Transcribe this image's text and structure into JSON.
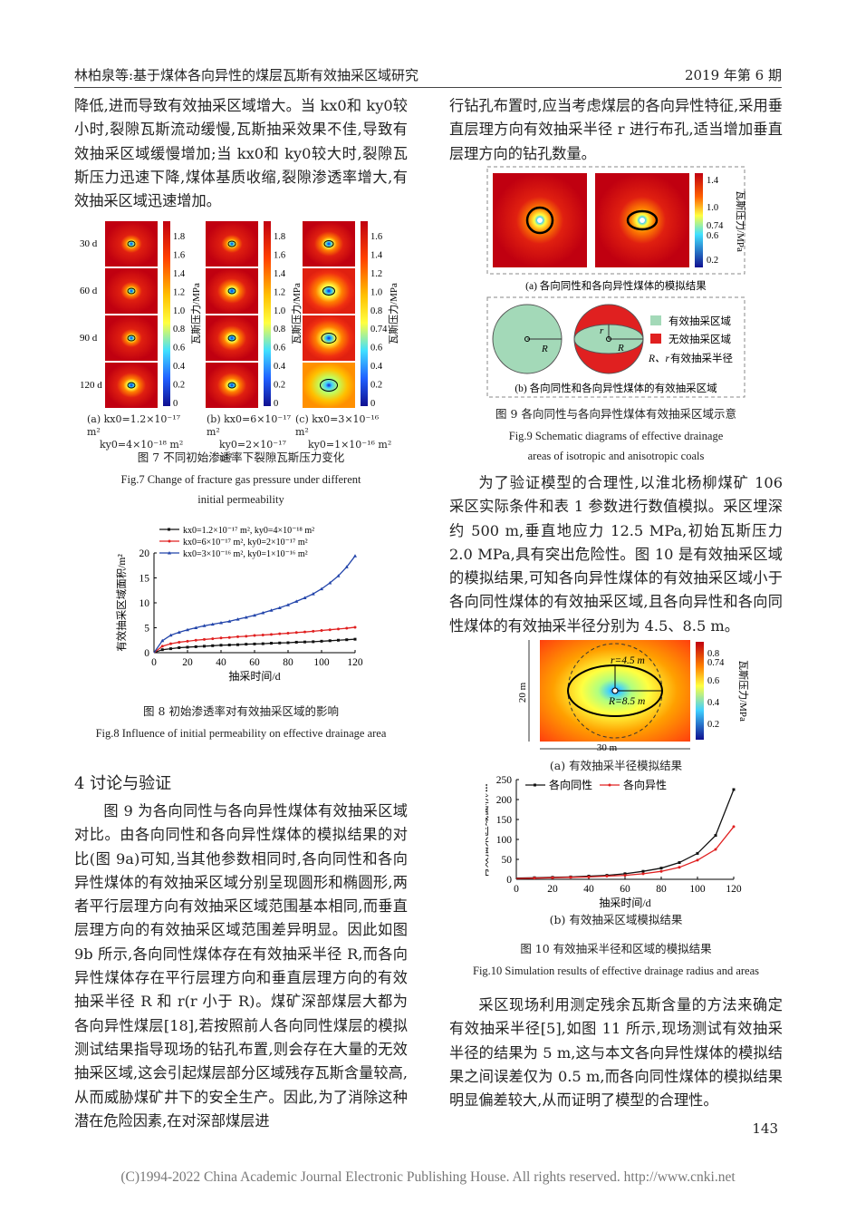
{
  "header": {
    "left": "林柏泉等:基于煤体各向异性的煤层瓦斯有效抽采区域研究",
    "right": "2019 年第 6 期"
  },
  "left_column": {
    "para1": "降低,进而导致有效抽采区域增大。当 kx0和 ky0较小时,裂隙瓦斯流动缓慢,瓦斯抽采效果不佳,导致有效抽采区域缓慢增加;当 kx0和 ky0较大时,裂隙瓦斯压力迅速下降,煤体基质收缩,裂隙渗透率增大,有效抽采区域迅速增加。",
    "section_title": "4  讨论与验证",
    "para2": "图 9 为各向同性与各向异性煤体有效抽采区域对比。由各向同性和各向异性煤体的模拟结果的对比(图 9a)可知,当其他参数相同时,各向同性和各向异性煤体的有效抽采区域分别呈现圆形和椭圆形,两者平行层理方向有效抽采区域范围基本相同,而垂直层理方向的有效抽采区域范围差异明显。因此如图 9b 所示,各向同性煤体存在有效抽采半径 R,而各向异性煤体存在平行层理方向和垂直层理方向的有效抽采半径 R 和 r(r 小于 R)。煤矿深部煤层大都为各向异性煤层[18],若按照前人各向同性煤层的模拟测试结果指导现场的钻孔布置,则会存在大量的无效抽采区域,这会引起煤层部分区域残存瓦斯含量较高,从而威胁煤矿井下的安全生产。因此,为了消除这种潜在危险因素,在对深部煤层进"
  },
  "right_column": {
    "para1": "行钻孔布置时,应当考虑煤层的各向异性特征,采用垂直层理方向有效抽采半径 r 进行布孔,适当增加垂直层理方向的钻孔数量。",
    "para2": "为了验证模型的合理性,以淮北杨柳煤矿 106 采区实际条件和表 1 参数进行数值模拟。采区埋深约 500 m,垂直地应力 12.5 MPa,初始瓦斯压力 2.0 MPa,具有突出危险性。图 10 是有效抽采区域的模拟结果,可知各向异性煤体的有效抽采区域小于各向同性煤体的有效抽采区域,且各向异性和各向同性煤体的有效抽采半径分别为 4.5、8.5 m。",
    "para3": "采区现场利用测定残余瓦斯含量的方法来确定有效抽采半径[5],如图 11 所示,现场测试有效抽采半径的结果为 5 m,这与本文各向异性煤体的模拟结果之间误差仅为 0.5 m,而各向同性煤体的模拟结果明显偏差较大,从而证明了模型的合理性。"
  },
  "fig7": {
    "row_labels": [
      "30 d",
      "60 d",
      "90 d",
      "120 d"
    ],
    "colorbar_ticks_a": [
      "1.8",
      "1.6",
      "1.4",
      "1.2",
      "1.0",
      "0.8",
      "0.6",
      "0.4",
      "0.2",
      "0"
    ],
    "colorbar_ticks_c": [
      "1.6",
      "1.4",
      "1.2",
      "1.0",
      "0.8",
      "0.74",
      "0.6",
      "0.4",
      "0.2",
      "0"
    ],
    "colorbar_label": "瓦斯压力/MPa",
    "sub_a_1": "(a)  kx0=1.2×10⁻¹⁷ m²",
    "sub_a_2": "ky0=4×10⁻¹⁸ m²",
    "sub_b_1": "(b) kx0=6×10⁻¹⁷ m²",
    "sub_b_2": "ky0=2×10⁻¹⁷ m²",
    "sub_c_1": "(c) kx0=3×10⁻¹⁶ m²",
    "sub_c_2": "ky0=1×10⁻¹⁶ m²",
    "caption_cn": "图 7   不同初始渗透率下裂隙瓦斯压力变化",
    "caption_en_1": "Fig.7   Change of fracture gas pressure under different",
    "caption_en_2": "initial permeability"
  },
  "fig8": {
    "caption_cn": "图 8   初始渗透率对有效抽采区域的影响",
    "caption_en": "Fig.8   Influence of initial permeability on effective drainage area",
    "chart_data": {
      "type": "line",
      "xlabel": "抽采时间/d",
      "ylabel": "有效抽采区域面积/m²",
      "xlim": [
        0,
        120
      ],
      "ylim": [
        0,
        20
      ],
      "xticks": [
        0,
        20,
        40,
        60,
        80,
        100,
        120
      ],
      "yticks": [
        0,
        5,
        10,
        15,
        20
      ],
      "legend_position": "top",
      "x": [
        0,
        5,
        10,
        15,
        20,
        25,
        30,
        35,
        40,
        45,
        50,
        55,
        60,
        65,
        70,
        75,
        80,
        85,
        90,
        95,
        100,
        105,
        110,
        115,
        120
      ],
      "series": [
        {
          "name": "kx0=1.2×10⁻¹⁷ m², ky0=4×10⁻¹⁸ m²",
          "color": "#111111",
          "marker": "square",
          "values": [
            0,
            0.6,
            0.8,
            1.0,
            1.1,
            1.2,
            1.3,
            1.4,
            1.5,
            1.55,
            1.6,
            1.7,
            1.75,
            1.8,
            1.9,
            1.95,
            2.0,
            2.1,
            2.15,
            2.2,
            2.3,
            2.4,
            2.5,
            2.6,
            2.7
          ]
        },
        {
          "name": "kx0=6×10⁻¹⁷ m², ky0=2×10⁻¹⁷ m²",
          "color": "#e02020",
          "marker": "circle",
          "values": [
            0,
            1.3,
            1.8,
            2.1,
            2.3,
            2.5,
            2.65,
            2.8,
            2.95,
            3.05,
            3.2,
            3.3,
            3.45,
            3.55,
            3.65,
            3.8,
            3.9,
            4.05,
            4.15,
            4.3,
            4.45,
            4.6,
            4.75,
            4.9,
            5.1
          ]
        },
        {
          "name": "kx0=3×10⁻¹⁶ m², ky0=1×10⁻¹⁶ m²",
          "color": "#2244aa",
          "marker": "triangle",
          "values": [
            0,
            2.4,
            3.5,
            4.1,
            4.6,
            5.0,
            5.4,
            5.7,
            6.0,
            6.3,
            6.7,
            7.1,
            7.5,
            8.0,
            8.5,
            9.0,
            9.6,
            10.3,
            11.0,
            11.8,
            12.8,
            14.0,
            15.4,
            17.2,
            19.4
          ]
        }
      ]
    }
  },
  "fig9": {
    "colorbar_ticks": [
      "1.4",
      "1.0",
      "0.74",
      "0.6",
      "0.2"
    ],
    "colorbar_label": "瓦斯压力/MPa",
    "sub_a": "(a) 各向同性和各向异性煤体的模拟结果",
    "legend": [
      "有效抽采区域",
      "无效抽采区域",
      "有效抽采半径"
    ],
    "legend_prefix": "R、r",
    "label_R": "R",
    "label_r": "r",
    "legend_colors": [
      "#a3d9b8",
      "#e02020"
    ],
    "sub_b": "(b) 各向同性和各向异性煤体的有效抽采区域",
    "caption_cn": "图 9   各向同性与各向异性煤体有效抽采区域示意",
    "caption_en_1": "Fig.9   Schematic diagrams of effective drainage",
    "caption_en_2": "areas of isotropic and anisotropic coals"
  },
  "fig10": {
    "colorbar_ticks": [
      "0.8",
      "0.74",
      "0.6",
      "0.4",
      "0.2"
    ],
    "colorbar_label": "瓦斯压力/MPa",
    "label_r": "r=4.5 m",
    "label_R": "R=8.5 m",
    "height_label": "20 m",
    "width_label": "30 m",
    "sub_a": "(a) 有效抽采半径模拟结果",
    "sub_b": "(b) 有效抽采区域模拟结果",
    "caption_cn": "图 10   有效抽采半径和区域的模拟结果",
    "caption_en": "Fig.10   Simulation results of effective drainage radius and areas",
    "chart_data": {
      "type": "line",
      "xlabel": "抽采时间/d",
      "ylabel": "有效抽采区域面积/m²",
      "xlim": [
        0,
        120
      ],
      "ylim": [
        0,
        250
      ],
      "xticks": [
        0,
        20,
        40,
        60,
        80,
        100,
        120
      ],
      "yticks": [
        0,
        50,
        100,
        150,
        200,
        250
      ],
      "legend_position": "top",
      "x": [
        0,
        10,
        20,
        30,
        40,
        50,
        60,
        70,
        80,
        90,
        100,
        110,
        120
      ],
      "series": [
        {
          "name": "各向同性",
          "color": "#111111",
          "marker": "square",
          "values": [
            3,
            4,
            5,
            6,
            8,
            10,
            14,
            20,
            28,
            42,
            65,
            110,
            225
          ]
        },
        {
          "name": "各向异性",
          "color": "#e02020",
          "marker": "circle",
          "values": [
            2,
            3,
            4,
            5,
            6,
            8,
            10,
            14,
            20,
            30,
            48,
            75,
            132
          ]
        }
      ]
    }
  },
  "page_number": "143",
  "footer": "(C)1994-2022 China Academic Journal Electronic Publishing House. All rights reserved.    http://www.cnki.net"
}
